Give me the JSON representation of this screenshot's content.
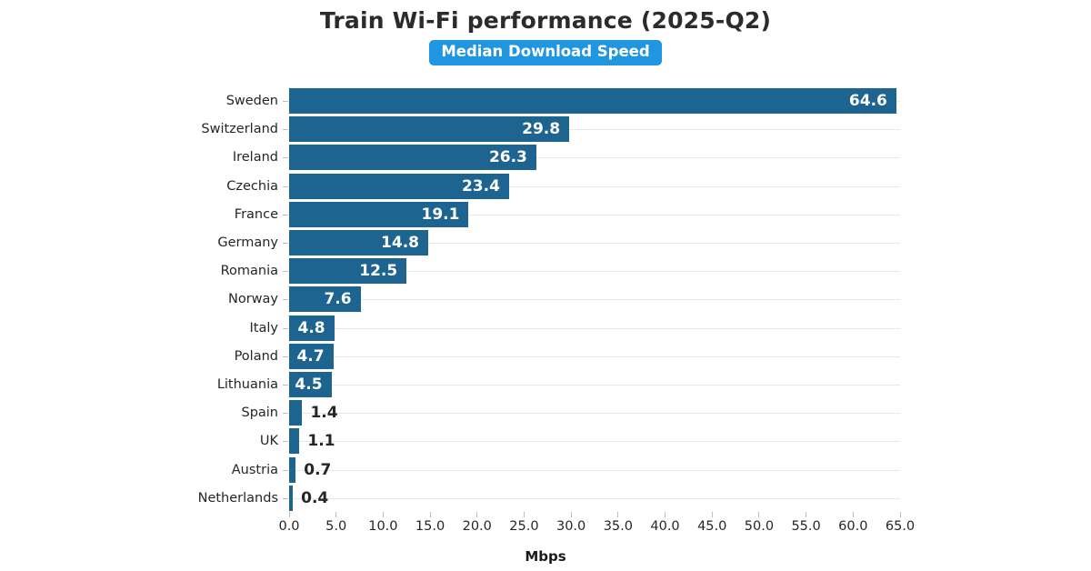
{
  "colors": {
    "bar": "#1e6491",
    "badge_bg": "#2095e0",
    "badge_text": "#ffffff",
    "title_text": "#2b2b2b",
    "axis_text": "#262626",
    "grid": "#e8e8e8",
    "tick_mark": "#bcbcbc",
    "value_inside": "#ffffff",
    "value_outside": "#262626"
  },
  "chart_data": {
    "type": "bar",
    "orientation": "horizontal",
    "title": "Train Wi-Fi performance (2025-Q2)",
    "series_label": "Median Download Speed",
    "xlabel": "Mbps",
    "ylabel": "",
    "categories": [
      "Sweden",
      "Switzerland",
      "Ireland",
      "Czechia",
      "France",
      "Germany",
      "Romania",
      "Norway",
      "Italy",
      "Poland",
      "Lithuania",
      "Spain",
      "UK",
      "Austria",
      "Netherlands"
    ],
    "values": [
      64.6,
      29.8,
      26.3,
      23.4,
      19.1,
      14.8,
      12.5,
      7.6,
      4.8,
      4.7,
      4.5,
      1.4,
      1.1,
      0.7,
      0.4
    ],
    "value_labels": [
      "64.6",
      "29.8",
      "26.3",
      "23.4",
      "19.1",
      "14.8",
      "12.5",
      "7.6",
      "4.8",
      "4.7",
      "4.5",
      "1.4",
      "1.1",
      "0.7",
      "0.4"
    ],
    "xlim": [
      0,
      65
    ],
    "xticks": [
      0,
      5,
      10,
      15,
      20,
      25,
      30,
      35,
      40,
      45,
      50,
      55,
      60,
      65
    ],
    "xtick_labels": [
      "0.0",
      "5.0",
      "10.0",
      "15.0",
      "20.0",
      "25.0",
      "30.0",
      "35.0",
      "40.0",
      "45.0",
      "50.0",
      "55.0",
      "60.0",
      "65.0"
    ],
    "grid": "horizontal gridlines at each category, behind bars",
    "legend_position": "top-center badge",
    "value_label_placement": "inside bar end when bar is wide enough, otherwise outside right"
  }
}
